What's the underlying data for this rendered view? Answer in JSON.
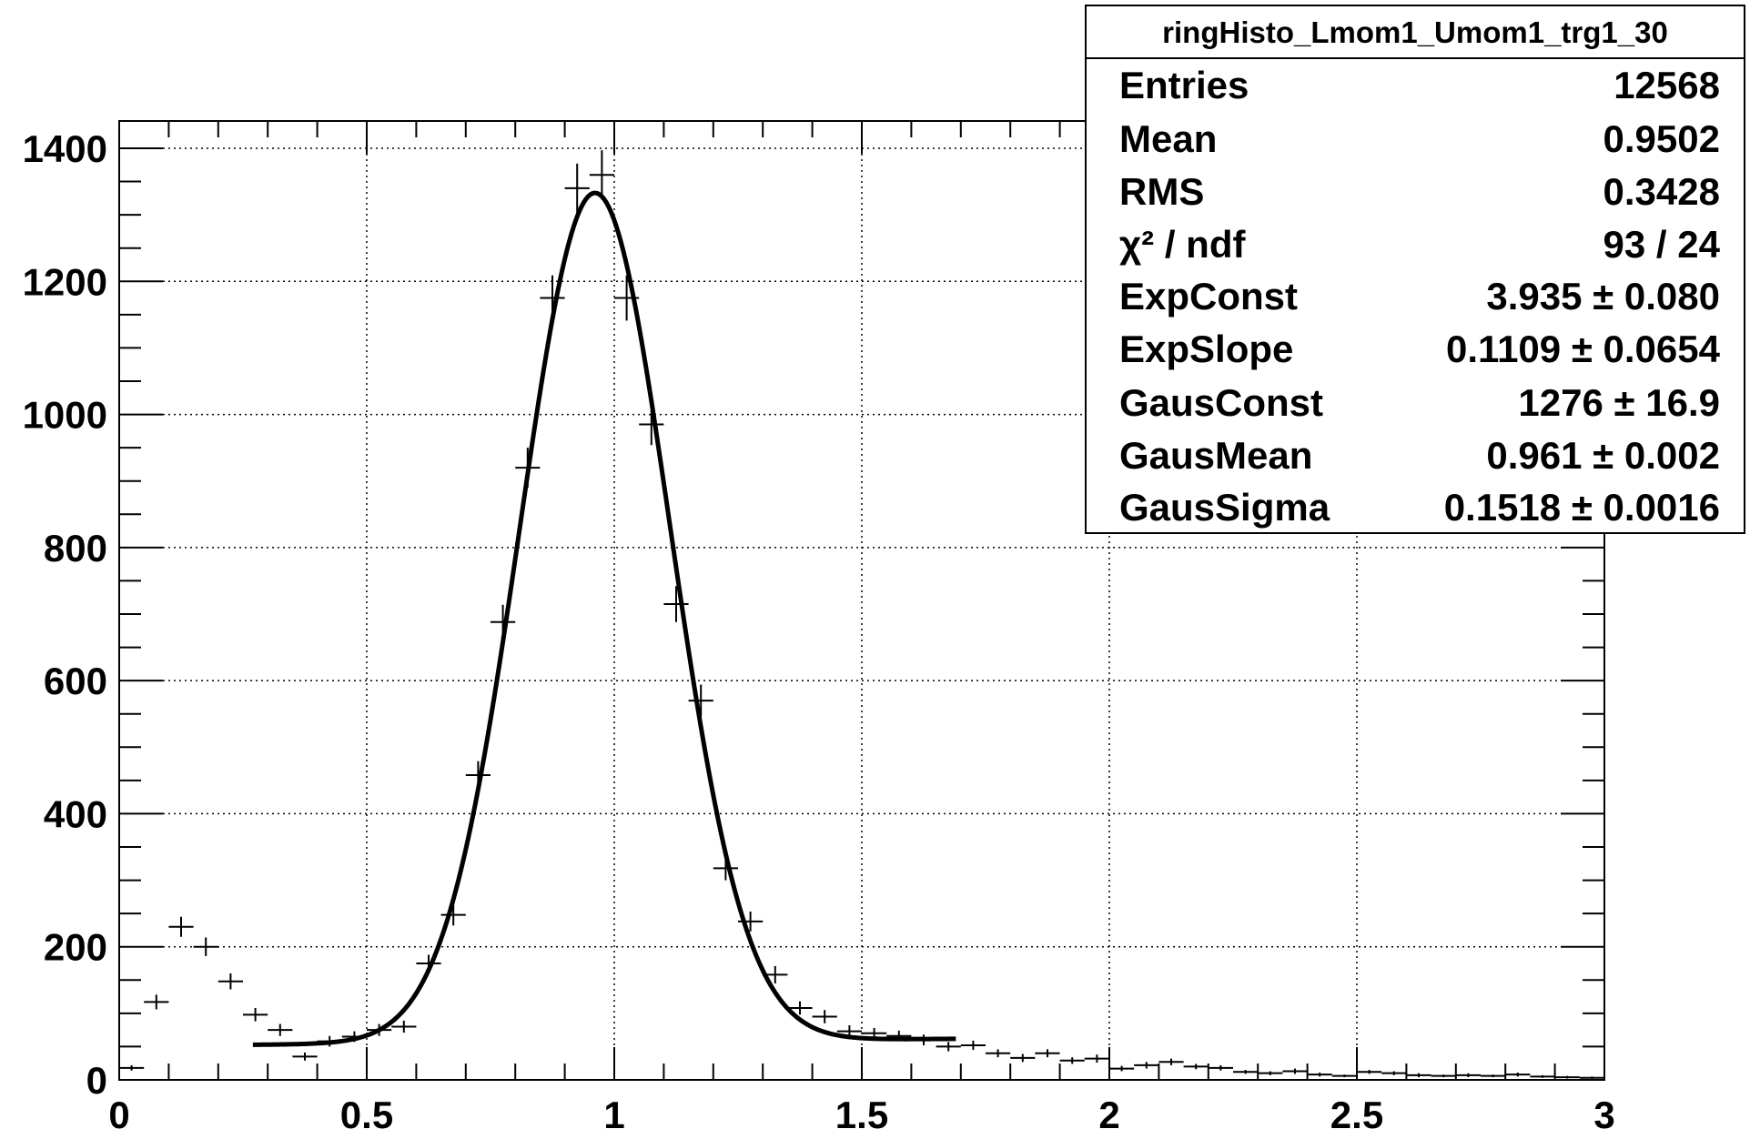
{
  "chart_data": {
    "type": "scatter",
    "title": "",
    "xlabel": "",
    "ylabel": "",
    "xlim": [
      0,
      3
    ],
    "ylim": [
      0,
      1400
    ],
    "grid": true,
    "x_ticks": [
      "0",
      "0.5",
      "1",
      "1.5",
      "2",
      "2.5",
      "3"
    ],
    "y_ticks": [
      "0",
      "200",
      "400",
      "600",
      "800",
      "1000",
      "1200",
      "1400"
    ],
    "histogram": {
      "bin_width": 0.05,
      "points": [
        [
          0.025,
          18,
          4
        ],
        [
          0.075,
          117,
          11
        ],
        [
          0.125,
          230,
          15
        ],
        [
          0.175,
          200,
          14
        ],
        [
          0.225,
          148,
          12
        ],
        [
          0.275,
          98,
          10
        ],
        [
          0.325,
          75,
          9
        ],
        [
          0.375,
          35,
          6
        ],
        [
          0.425,
          58,
          8
        ],
        [
          0.475,
          65,
          8
        ],
        [
          0.525,
          75,
          9
        ],
        [
          0.575,
          80,
          9
        ],
        [
          0.625,
          175,
          13
        ],
        [
          0.675,
          248,
          16
        ],
        [
          0.725,
          458,
          21
        ],
        [
          0.775,
          688,
          26
        ],
        [
          0.825,
          920,
          30
        ],
        [
          0.875,
          1175,
          34
        ],
        [
          0.925,
          1340,
          37
        ],
        [
          0.975,
          1360,
          37
        ],
        [
          1.025,
          1175,
          34
        ],
        [
          1.075,
          985,
          31
        ],
        [
          1.125,
          715,
          27
        ],
        [
          1.175,
          570,
          24
        ],
        [
          1.225,
          318,
          18
        ],
        [
          1.275,
          238,
          15
        ],
        [
          1.325,
          158,
          13
        ],
        [
          1.375,
          108,
          10
        ],
        [
          1.425,
          95,
          10
        ],
        [
          1.475,
          73,
          9
        ],
        [
          1.525,
          70,
          8
        ],
        [
          1.575,
          66,
          8
        ],
        [
          1.625,
          60,
          8
        ],
        [
          1.675,
          50,
          7
        ],
        [
          1.725,
          52,
          7
        ],
        [
          1.775,
          40,
          6
        ],
        [
          1.825,
          33,
          6
        ],
        [
          1.875,
          40,
          6
        ],
        [
          1.925,
          29,
          5
        ],
        [
          1.975,
          32,
          6
        ],
        [
          2.025,
          17,
          4
        ],
        [
          2.075,
          22,
          5
        ],
        [
          2.125,
          27,
          5
        ],
        [
          2.175,
          20,
          4
        ],
        [
          2.225,
          18,
          4
        ],
        [
          2.275,
          12,
          3
        ],
        [
          2.325,
          10,
          3
        ],
        [
          2.375,
          13,
          4
        ],
        [
          2.425,
          8,
          3
        ],
        [
          2.475,
          6,
          2
        ],
        [
          2.525,
          12,
          3
        ],
        [
          2.575,
          10,
          3
        ],
        [
          2.625,
          7,
          3
        ],
        [
          2.675,
          6,
          2
        ],
        [
          2.725,
          7,
          3
        ],
        [
          2.775,
          6,
          2
        ],
        [
          2.825,
          8,
          3
        ],
        [
          2.875,
          5,
          2
        ],
        [
          2.925,
          4,
          2
        ],
        [
          2.975,
          3,
          2
        ]
      ]
    },
    "fit": {
      "model": "exp(ExpConst + ExpSlope*x) + GausConst*exp(-0.5*((x-GausMean)/GausSigma)^2)",
      "x_range": [
        0.27,
        1.69
      ],
      "ExpConst": 3.935,
      "ExpSlope": 0.1109,
      "GausConst": 1276,
      "GausMean": 0.961,
      "GausSigma": 0.1518
    }
  },
  "stats_box": {
    "title": "ringHisto_Lmom1_Umom1_trg1_30",
    "rows": [
      {
        "label": "Entries",
        "value": "12568"
      },
      {
        "label": "Mean",
        "value": "0.9502"
      },
      {
        "label": "RMS",
        "value": "0.3428"
      },
      {
        "label": "χ² / ndf",
        "value": "93 / 24"
      },
      {
        "label": "ExpConst",
        "value": "3.935 ± 0.080"
      },
      {
        "label": "ExpSlope",
        "value": "0.1109 ± 0.0654"
      },
      {
        "label": "GausConst",
        "value": "1276 ± 16.9"
      },
      {
        "label": "GausMean",
        "value": "0.961 ± 0.002"
      },
      {
        "label": "GausSigma",
        "value": "0.1518 ± 0.0016"
      }
    ]
  }
}
